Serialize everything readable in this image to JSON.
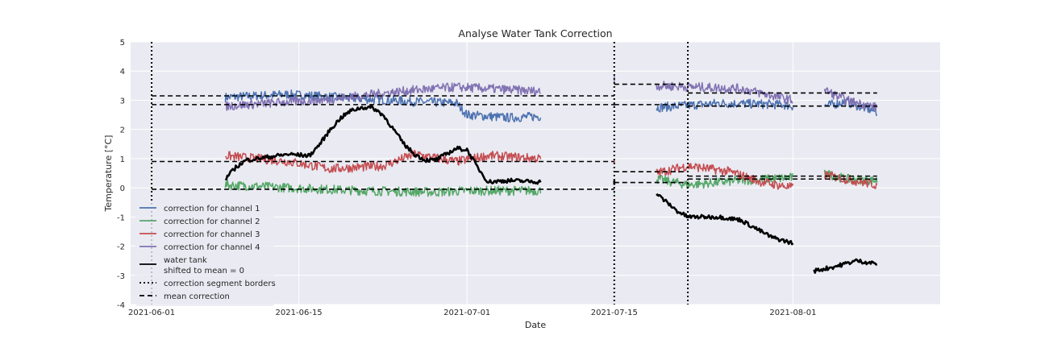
{
  "chart_data": {
    "type": "line",
    "title": "Analyse Water Tank Correction",
    "xlabel": "Date",
    "ylabel": "Temperature [°C]",
    "x_axis": {
      "type": "date",
      "range": [
        "2021-05-30",
        "2021-08-15"
      ],
      "ticks": [
        "2021-06-01",
        "2021-06-15",
        "2021-07-01",
        "2021-07-15",
        "2021-08-01"
      ]
    },
    "ylim": [
      -4,
      5
    ],
    "yticks": [
      -4,
      -3,
      -2,
      -1,
      0,
      1,
      2,
      3,
      4,
      5
    ],
    "grid": true,
    "legend_position": "lower-left",
    "series": [
      {
        "name": "correction for channel 1",
        "color": "#4c72b0",
        "style": "solid",
        "segments": [
          {
            "points": [
              [
                "2021-06-08",
                3.1
              ],
              [
                "2021-06-14",
                3.2
              ],
              [
                "2021-06-21",
                3.05
              ],
              [
                "2021-06-26",
                2.95
              ],
              [
                "2021-06-30",
                2.9
              ],
              [
                "2021-07-01",
                2.5
              ],
              [
                "2021-07-05",
                2.4
              ],
              [
                "2021-07-08",
                2.45
              ]
            ]
          },
          {
            "points": [
              [
                "2021-07-15",
                2.9
              ],
              [
                "2021-07-15",
                2.8
              ]
            ]
          },
          {
            "points": [
              [
                "2021-07-19",
                2.75
              ],
              [
                "2021-07-25",
                2.9
              ],
              [
                "2021-07-31",
                2.85
              ],
              [
                "2021-08-01",
                2.8
              ]
            ]
          },
          {
            "points": [
              [
                "2021-08-04",
                2.8
              ],
              [
                "2021-08-06",
                2.95
              ],
              [
                "2021-08-09",
                2.6
              ]
            ]
          }
        ]
      },
      {
        "name": "correction for channel 2",
        "color": "#55a868",
        "style": "solid",
        "segments": [
          {
            "points": [
              [
                "2021-06-08",
                0.1
              ],
              [
                "2021-06-14",
                0.0
              ],
              [
                "2021-06-21",
                -0.1
              ],
              [
                "2021-06-28",
                -0.15
              ],
              [
                "2021-07-01",
                -0.1
              ],
              [
                "2021-07-08",
                -0.1
              ]
            ]
          },
          {
            "points": [
              [
                "2021-07-15",
                -0.1
              ],
              [
                "2021-07-15",
                -0.2
              ]
            ]
          },
          {
            "points": [
              [
                "2021-07-19",
                0.3
              ],
              [
                "2021-07-22",
                0.1
              ],
              [
                "2021-07-27",
                0.25
              ],
              [
                "2021-08-01",
                0.35
              ]
            ]
          },
          {
            "points": [
              [
                "2021-08-04",
                0.5
              ],
              [
                "2021-08-06",
                0.3
              ],
              [
                "2021-08-09",
                0.25
              ]
            ]
          }
        ]
      },
      {
        "name": "correction for channel 3",
        "color": "#c44e52",
        "style": "solid",
        "segments": [
          {
            "points": [
              [
                "2021-06-08",
                1.1
              ],
              [
                "2021-06-14",
                0.9
              ],
              [
                "2021-06-18",
                0.65
              ],
              [
                "2021-06-23",
                0.75
              ],
              [
                "2021-06-26",
                1.15
              ],
              [
                "2021-06-30",
                0.9
              ],
              [
                "2021-07-03",
                1.1
              ],
              [
                "2021-07-08",
                1.0
              ]
            ]
          },
          {
            "points": [
              [
                "2021-07-15",
                0.95
              ],
              [
                "2021-07-15",
                0.85
              ]
            ]
          },
          {
            "points": [
              [
                "2021-07-19",
                0.5
              ],
              [
                "2021-07-22",
                0.75
              ],
              [
                "2021-07-26",
                0.55
              ],
              [
                "2021-07-29",
                0.2
              ],
              [
                "2021-08-01",
                0.0
              ]
            ]
          },
          {
            "points": [
              [
                "2021-08-04",
                0.45
              ],
              [
                "2021-08-06",
                0.3
              ],
              [
                "2021-08-09",
                0.1
              ]
            ]
          }
        ]
      },
      {
        "name": "correction for channel 4",
        "color": "#8172b2",
        "style": "solid",
        "segments": [
          {
            "points": [
              [
                "2021-06-08",
                2.8
              ],
              [
                "2021-06-12",
                2.9
              ],
              [
                "2021-06-17",
                3.0
              ],
              [
                "2021-06-22",
                3.2
              ],
              [
                "2021-06-26",
                3.35
              ],
              [
                "2021-06-30",
                3.45
              ],
              [
                "2021-07-03",
                3.4
              ],
              [
                "2021-07-08",
                3.3
              ]
            ]
          },
          {
            "points": [
              [
                "2021-07-15",
                3.55
              ],
              [
                "2021-07-15",
                3.85
              ]
            ]
          },
          {
            "points": [
              [
                "2021-07-19",
                3.5
              ],
              [
                "2021-07-23",
                3.45
              ],
              [
                "2021-07-27",
                3.4
              ],
              [
                "2021-08-01",
                3.0
              ]
            ]
          },
          {
            "points": [
              [
                "2021-08-04",
                3.35
              ],
              [
                "2021-08-06",
                3.0
              ],
              [
                "2021-08-09",
                2.75
              ]
            ]
          }
        ]
      },
      {
        "name": "water tank\nshifted to mean = 0",
        "color": "#000000",
        "style": "solid",
        "segments": [
          {
            "points": [
              [
                "2021-06-08",
                0.3
              ],
              [
                "2021-06-09",
                0.7
              ],
              [
                "2021-06-10",
                0.95
              ],
              [
                "2021-06-12",
                1.05
              ],
              [
                "2021-06-14",
                1.15
              ],
              [
                "2021-06-16",
                1.1
              ],
              [
                "2021-06-17",
                1.5
              ],
              [
                "2021-06-18",
                2.0
              ],
              [
                "2021-06-19",
                2.4
              ],
              [
                "2021-06-20",
                2.65
              ],
              [
                "2021-06-21",
                2.75
              ],
              [
                "2021-06-22",
                2.75
              ],
              [
                "2021-06-23",
                2.5
              ],
              [
                "2021-06-24",
                2.0
              ],
              [
                "2021-06-25",
                1.5
              ],
              [
                "2021-06-26",
                1.15
              ],
              [
                "2021-06-27",
                0.95
              ],
              [
                "2021-06-28",
                0.95
              ],
              [
                "2021-06-29",
                1.15
              ],
              [
                "2021-06-30",
                1.35
              ],
              [
                "2021-07-01",
                1.3
              ],
              [
                "2021-07-02",
                0.7
              ],
              [
                "2021-07-03",
                0.2
              ],
              [
                "2021-07-05",
                0.25
              ],
              [
                "2021-07-08",
                0.2
              ]
            ]
          },
          {
            "points": [
              [
                "2021-07-15",
                0.25
              ],
              [
                "2021-07-15",
                0.1
              ]
            ]
          },
          {
            "points": [
              [
                "2021-07-19",
                -0.2
              ],
              [
                "2021-07-21",
                -0.8
              ],
              [
                "2021-07-22",
                -1.0
              ],
              [
                "2021-07-25",
                -1.0
              ],
              [
                "2021-07-27",
                -1.1
              ],
              [
                "2021-07-29",
                -1.5
              ],
              [
                "2021-07-30",
                -1.7
              ],
              [
                "2021-08-01",
                -1.9
              ]
            ]
          },
          {
            "points": [
              [
                "2021-08-03",
                -2.85
              ],
              [
                "2021-08-05",
                -2.7
              ],
              [
                "2021-08-07",
                -2.5
              ],
              [
                "2021-08-09",
                -2.6
              ]
            ]
          }
        ]
      },
      {
        "name": "correction segment borders",
        "color": "#000000",
        "style": "dotted",
        "vlines": [
          "2021-06-01",
          "2021-07-15",
          "2021-07-22"
        ]
      },
      {
        "name": "mean correction",
        "color": "#000000",
        "style": "dashed",
        "hlines": [
          {
            "y": 3.15,
            "from": "2021-06-01",
            "to": "2021-07-15"
          },
          {
            "y": 2.85,
            "from": "2021-06-01",
            "to": "2021-07-15"
          },
          {
            "y": 0.9,
            "from": "2021-06-01",
            "to": "2021-07-15"
          },
          {
            "y": -0.05,
            "from": "2021-06-01",
            "to": "2021-07-15"
          },
          {
            "y": 3.55,
            "from": "2021-07-15",
            "to": "2021-07-22"
          },
          {
            "y": 2.85,
            "from": "2021-07-15",
            "to": "2021-07-22"
          },
          {
            "y": 0.55,
            "from": "2021-07-15",
            "to": "2021-07-22"
          },
          {
            "y": 0.18,
            "from": "2021-07-15",
            "to": "2021-07-22"
          },
          {
            "y": 3.25,
            "from": "2021-07-22",
            "to": "2021-08-09"
          },
          {
            "y": 2.8,
            "from": "2021-07-22",
            "to": "2021-08-09"
          },
          {
            "y": 0.4,
            "from": "2021-07-22",
            "to": "2021-08-09"
          },
          {
            "y": 0.3,
            "from": "2021-07-22",
            "to": "2021-08-09"
          }
        ]
      }
    ]
  }
}
